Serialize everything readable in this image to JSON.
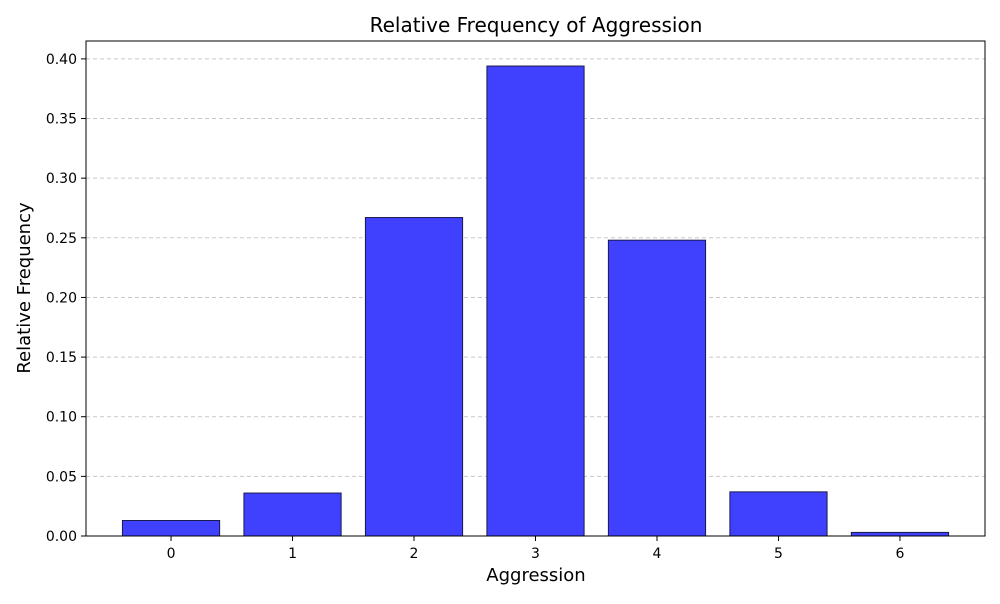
{
  "chart_data": {
    "type": "bar",
    "title": "Relative Frequency of Aggression",
    "xlabel": "Aggression",
    "ylabel": "Relative Frequency",
    "categories": [
      "0",
      "1",
      "2",
      "3",
      "4",
      "5",
      "6"
    ],
    "values": [
      0.013,
      0.036,
      0.267,
      0.394,
      0.248,
      0.037,
      0.003
    ],
    "ylim": [
      0,
      0.415
    ],
    "yticks": [
      "0.00",
      "0.05",
      "0.10",
      "0.15",
      "0.20",
      "0.25",
      "0.30",
      "0.35",
      "0.40"
    ],
    "grid": "y, dashed",
    "colors": {
      "bar_fill": "#4040ff",
      "bar_edge": "#1a1a4d",
      "grid": "#c8c8c8"
    }
  }
}
